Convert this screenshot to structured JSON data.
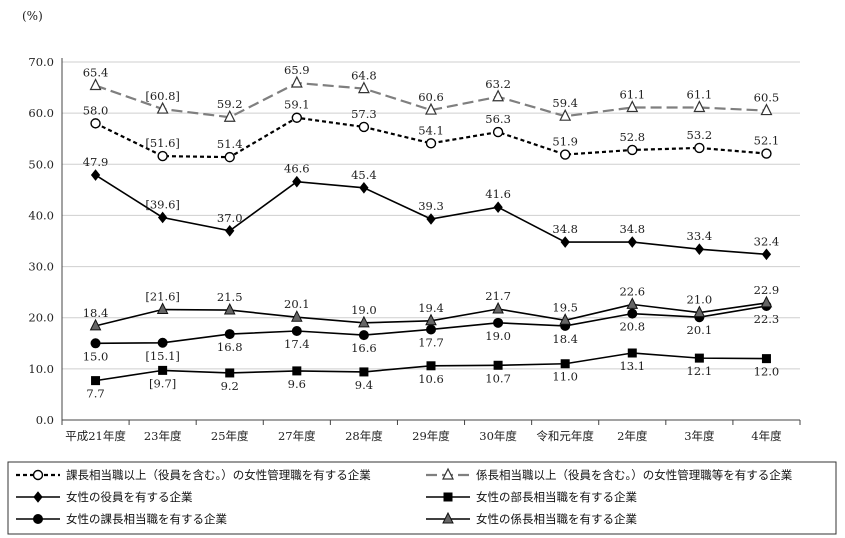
{
  "chart_data": {
    "type": "line",
    "unit_label": "(%)",
    "ylim": [
      0,
      70
    ],
    "yticks": [
      "0.0",
      "10.0",
      "20.0",
      "30.0",
      "40.0",
      "50.0",
      "60.0",
      "70.0"
    ],
    "categories": [
      "平成21年度",
      "23年度",
      "25年度",
      "27年度",
      "28年度",
      "29年度",
      "30年度",
      "令和元年度",
      "2年度",
      "3年度",
      "4年度"
    ],
    "series": [
      {
        "name": "課長相当職以上（役員を含む。）の女性管理職を有する企業",
        "values": [
          58.0,
          51.6,
          51.4,
          59.1,
          57.3,
          54.1,
          56.3,
          51.9,
          52.8,
          53.2,
          52.1
        ],
        "labels": [
          "58.0",
          "[51.6]",
          "51.4",
          "59.1",
          "57.3",
          "54.1",
          "56.3",
          "51.9",
          "52.8",
          "53.2",
          "52.1"
        ],
        "label_pos": "above",
        "marker": "circle-open",
        "dash": "dotted",
        "color": "#000000"
      },
      {
        "name": "係長相当職以上（役員を含む。）の女性管理職等を有する企業",
        "values": [
          65.4,
          60.8,
          59.2,
          65.9,
          64.8,
          60.6,
          63.2,
          59.4,
          61.1,
          61.1,
          60.5
        ],
        "labels": [
          "65.4",
          "[60.8]",
          "59.2",
          "65.9",
          "64.8",
          "60.6",
          "63.2",
          "59.4",
          "61.1",
          "61.1",
          "60.5"
        ],
        "label_pos": "above",
        "marker": "triangle-open",
        "dash": "dashed",
        "color": "#7f7f7f"
      },
      {
        "name": "女性の役員を有する企業",
        "values": [
          47.9,
          39.6,
          37.0,
          46.6,
          45.4,
          39.3,
          41.6,
          34.8,
          34.8,
          33.4,
          32.4
        ],
        "labels": [
          "47.9",
          "[39.6]",
          "37.0",
          "46.6",
          "45.4",
          "39.3",
          "41.6",
          "34.8",
          "34.8",
          "33.4",
          "32.4"
        ],
        "label_pos": "above",
        "marker": "diamond",
        "dash": "solid",
        "color": "#000000"
      },
      {
        "name": "女性の部長相当職を有する企業",
        "values": [
          7.7,
          9.7,
          9.2,
          9.6,
          9.4,
          10.6,
          10.7,
          11.0,
          13.1,
          12.1,
          12.0
        ],
        "labels": [
          "7.7",
          "[9.7]",
          "9.2",
          "9.6",
          "9.4",
          "10.6",
          "10.7",
          "11.0",
          "13.1",
          "12.1",
          "12.0"
        ],
        "label_pos": "below",
        "marker": "square",
        "dash": "solid",
        "color": "#000000"
      },
      {
        "name": "女性の課長相当職を有する企業",
        "values": [
          15.0,
          15.1,
          16.8,
          17.4,
          16.6,
          17.7,
          19.0,
          18.4,
          20.8,
          20.1,
          22.3
        ],
        "labels": [
          "15.0",
          "[15.1]",
          "16.8",
          "17.4",
          "16.6",
          "17.7",
          "19.0",
          "18.4",
          "20.8",
          "20.1",
          "22.3"
        ],
        "label_pos": "below",
        "marker": "circle",
        "dash": "solid",
        "color": "#000000"
      },
      {
        "name": "女性の係長相当職を有する企業",
        "values": [
          18.4,
          21.6,
          21.5,
          20.1,
          19.0,
          19.4,
          21.7,
          19.5,
          22.6,
          21.0,
          22.9
        ],
        "labels": [
          "18.4",
          "[21.6]",
          "21.5",
          "20.1",
          "19.0",
          "19.4",
          "21.7",
          "19.5",
          "22.6",
          "21.0",
          "22.9"
        ],
        "label_pos": "above",
        "marker": "triangle",
        "dash": "solid",
        "color": "#000000",
        "fill": "#666666"
      }
    ]
  }
}
